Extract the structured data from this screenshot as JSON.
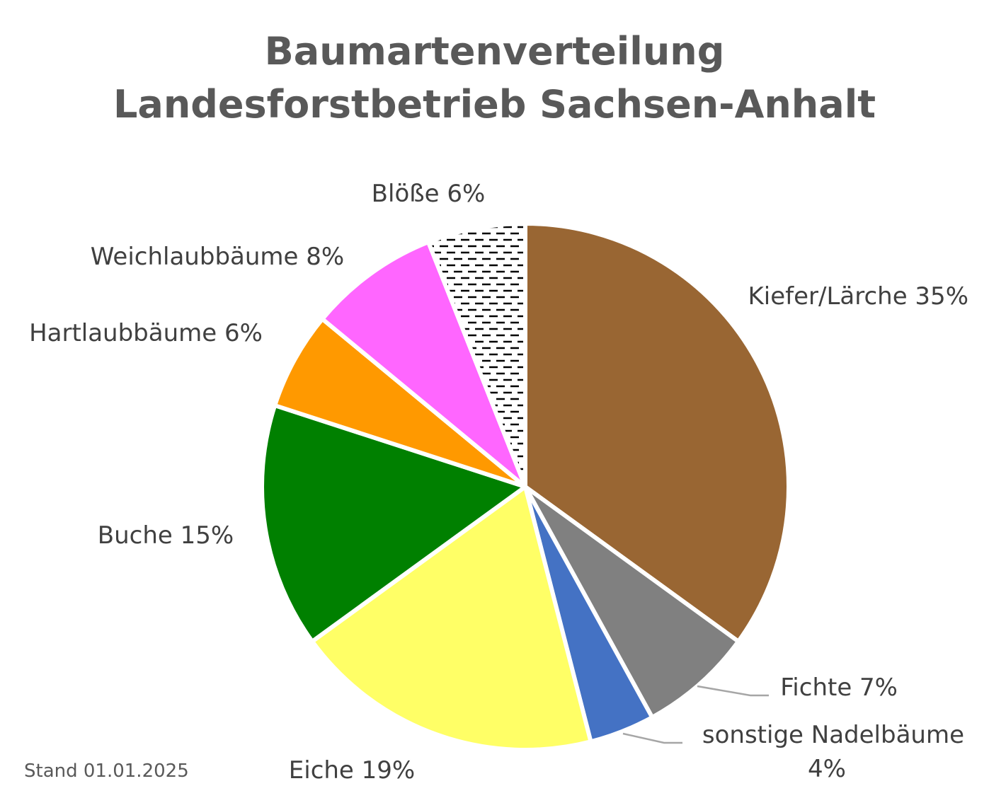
{
  "chart_data": {
    "type": "pie",
    "title": [
      "Baumartenverteilung",
      "Landesforstbetrieb Sachsen-Anhalt"
    ],
    "slices": [
      {
        "label": "Kiefer/Lärche 35%",
        "value": 35,
        "color": "#996633",
        "pattern": null
      },
      {
        "label": "Fichte 7%",
        "value": 7,
        "color": "#808080",
        "pattern": null
      },
      {
        "label": "sonstige Nadelbäume 4%",
        "value": 4,
        "color": "#4472c4",
        "pattern": null
      },
      {
        "label": "Eiche 19%",
        "value": 19,
        "color": "#ffff66",
        "pattern": null
      },
      {
        "label": "Buche 15%",
        "value": 15,
        "color": "#008000",
        "pattern": null
      },
      {
        "label": "Hartlaubbäume 6%",
        "value": 6,
        "color": "#ff9900",
        "pattern": null
      },
      {
        "label": "Weichlaubbäume 8%",
        "value": 8,
        "color": "#ff66ff",
        "pattern": null
      },
      {
        "label": "Blöße 6%",
        "value": 6,
        "color": "#ffffff",
        "pattern": "dashed-black"
      }
    ],
    "footnote": "Stand 01.01.2025",
    "legend": "none"
  }
}
